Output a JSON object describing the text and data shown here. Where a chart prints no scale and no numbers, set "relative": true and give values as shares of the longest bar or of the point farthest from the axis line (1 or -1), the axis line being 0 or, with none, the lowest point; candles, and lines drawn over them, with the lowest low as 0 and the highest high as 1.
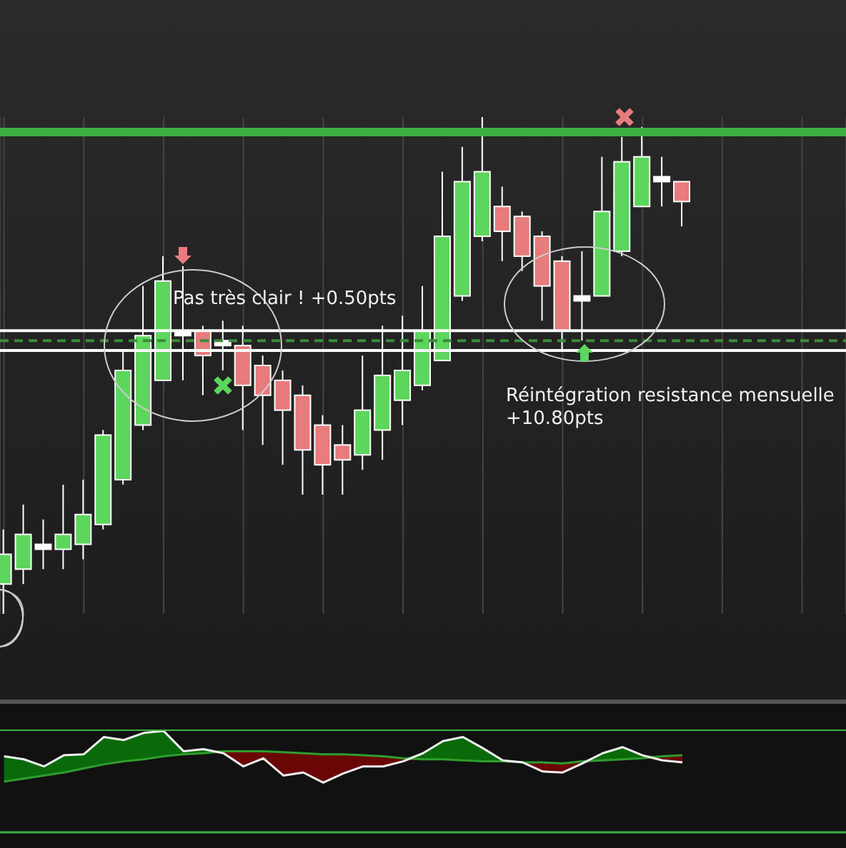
{
  "chart_data": [
    {
      "type": "candlestick",
      "relative": true,
      "grid": "x",
      "categories": [
        null,
        null,
        null,
        null,
        null,
        null,
        null,
        null,
        null,
        null,
        null,
        null,
        null,
        null,
        null,
        null,
        null,
        null,
        null,
        null,
        null,
        null,
        null,
        null,
        null,
        null,
        null,
        null,
        null,
        null,
        null,
        null,
        null,
        null,
        null
      ],
      "ohlc": [
        [
          0.06,
          0.17,
          0,
          0.12
        ],
        [
          0.09,
          0.22,
          0.06,
          0.16
        ],
        [
          0.13,
          0.19,
          0.09,
          0.14
        ],
        [
          0.13,
          0.26,
          0.09,
          0.16
        ],
        [
          0.14,
          0.27,
          0.11,
          0.2
        ],
        [
          0.18,
          0.37,
          0.17,
          0.36
        ],
        [
          0.27,
          0.53,
          0.26,
          0.49
        ],
        [
          0.38,
          0.66,
          0.37,
          0.56
        ],
        [
          0.47,
          0.72,
          0.47,
          0.67
        ],
        [
          0.57,
          0.7,
          0.47,
          0.56
        ],
        [
          0.57,
          0.58,
          0.44,
          0.52
        ],
        [
          0.54,
          0.59,
          0.49,
          0.55
        ],
        [
          0.54,
          0.58,
          0.37,
          0.46
        ],
        [
          0.5,
          0.52,
          0.34,
          0.44
        ],
        [
          0.47,
          0.49,
          0.3,
          0.41
        ],
        [
          0.44,
          0.46,
          0.24,
          0.33
        ],
        [
          0.38,
          0.4,
          0.24,
          0.3
        ],
        [
          0.34,
          0.38,
          0.24,
          0.31
        ],
        [
          0.32,
          0.52,
          0.29,
          0.41
        ],
        [
          0.37,
          0.58,
          0.31,
          0.48
        ],
        [
          0.43,
          0.6,
          0.38,
          0.49
        ],
        [
          0.46,
          0.66,
          0.45,
          0.57
        ],
        [
          0.51,
          0.89,
          0.51,
          0.76
        ],
        [
          0.64,
          0.94,
          0.63,
          0.87
        ],
        [
          0.76,
          1,
          0.75,
          0.89
        ],
        [
          0.82,
          0.86,
          0.71,
          0.77
        ],
        [
          0.8,
          0.81,
          0.69,
          0.72
        ],
        [
          0.76,
          0.77,
          0.59,
          0.66
        ],
        [
          0.71,
          0.72,
          0.53,
          0.57
        ],
        [
          0.64,
          0.73,
          0.55,
          0.63
        ],
        [
          0.64,
          0.92,
          0.64,
          0.81
        ],
        [
          0.73,
          0.96,
          0.72,
          0.91
        ],
        [
          0.82,
          0.98,
          0.82,
          0.92
        ],
        [
          0.87,
          0.92,
          0.82,
          0.88
        ],
        [
          0.87,
          0.87,
          0.78,
          0.83
        ]
      ],
      "colors": [
        "#5cd65c",
        "#5cd65c",
        "#ffffff",
        "#5cd65c",
        "#5cd65c",
        "#5cd65c",
        "#5cd65c",
        "#5cd65c",
        "#5cd65c",
        "#ffffff",
        "#e87b7b",
        "#ffffff",
        "#e87b7b",
        "#e87b7b",
        "#e87b7b",
        "#e87b7b",
        "#e87b7b",
        "#e87b7b",
        "#5cd65c",
        "#5cd65c",
        "#5cd65c",
        "#5cd65c",
        "#5cd65c",
        "#5cd65c",
        "#5cd65c",
        "#e87b7b",
        "#e87b7b",
        "#e87b7b",
        "#e87b7b",
        "#ffffff",
        "#5cd65c",
        "#5cd65c",
        "#5cd65c",
        "#ffffff",
        "#e87b7b"
      ],
      "ref_lines": [
        {
          "axis": "y",
          "value": 0.97,
          "color": "#3cb043",
          "line_style": "solid"
        },
        {
          "axis": "y",
          "value": 0.57,
          "color": "#ffffff",
          "line_style": "solid"
        },
        {
          "axis": "y",
          "value": 0.55,
          "color": "#3c8c3c",
          "line_style": "dashed"
        },
        {
          "axis": "y",
          "value": 0.53,
          "color": "#ffffff",
          "line_style": "solid"
        }
      ],
      "annotations": [
        "Pas très clair ! +0.50pts",
        "Réintégration resistance mensuelle\n+10.80pts"
      ]
    },
    {
      "type": "line",
      "relative": true,
      "categories": [
        null,
        null,
        null,
        null,
        null,
        null,
        null,
        null,
        null,
        null,
        null,
        null,
        null,
        null,
        null,
        null,
        null,
        null,
        null,
        null,
        null,
        null,
        null,
        null,
        null,
        null,
        null,
        null,
        null,
        null,
        null,
        null,
        null,
        null,
        null
      ],
      "series": [
        {
          "color": "#f0f0f0",
          "values": [
            0.75,
            0.72,
            0.65,
            0.76,
            0.77,
            0.94,
            0.91,
            0.98,
            1,
            0.8,
            0.82,
            0.78,
            0.65,
            0.73,
            0.56,
            0.59,
            0.49,
            0.58,
            0.65,
            0.65,
            0.7,
            0.78,
            0.9,
            0.94,
            0.83,
            0.71,
            0.69,
            0.6,
            0.59,
            0.68,
            0.78,
            0.84,
            0.76,
            0.71,
            0.69
          ]
        },
        {
          "color": "#2e9e2e",
          "values": [
            0.5,
            0.53,
            0.56,
            0.59,
            0.63,
            0.67,
            0.7,
            0.72,
            0.75,
            0.77,
            0.78,
            0.8,
            0.8,
            0.8,
            0.79,
            0.78,
            0.77,
            0.77,
            0.76,
            0.75,
            0.73,
            0.72,
            0.72,
            0.71,
            0.7,
            0.7,
            0.69,
            0.69,
            0.68,
            0.7,
            0.71,
            0.72,
            0.73,
            0.75,
            0.76
          ]
        }
      ]
    }
  ]
}
